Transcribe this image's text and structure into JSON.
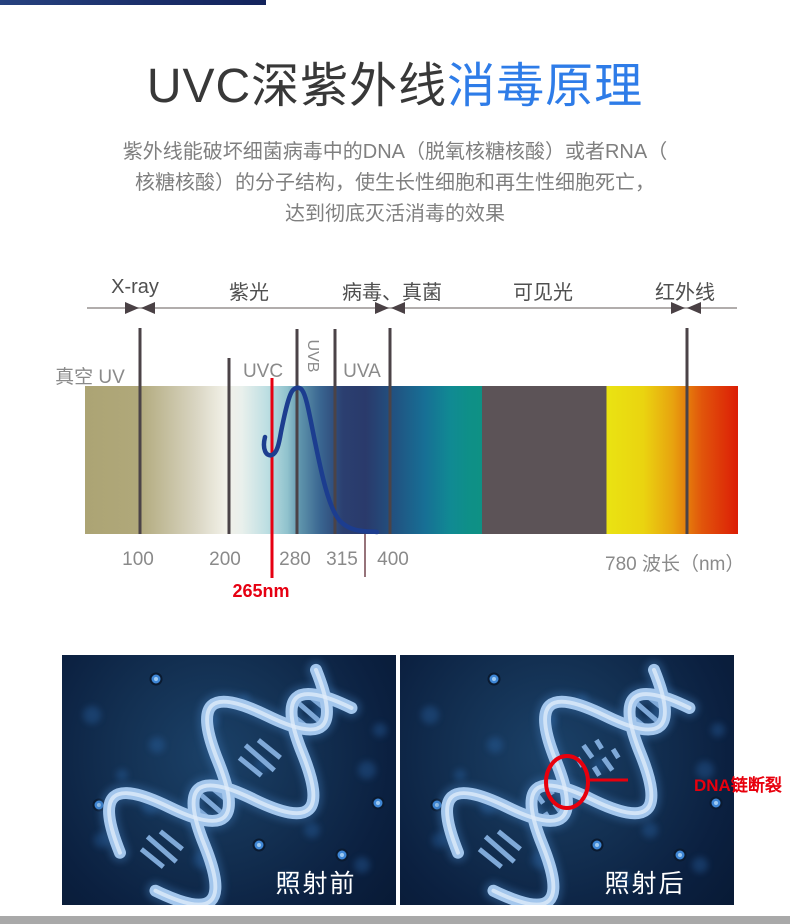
{
  "header": {
    "title_black": "UVC深紫外线",
    "title_blue": "消毒原理",
    "title_accent_color": "#2e7ce8",
    "description_lines": [
      "紫外线能破坏细菌病毒中的DNA（脱氧核糖核酸）或者RNA（",
      "核糖核酸）的分子结构，使生长性细胞和再生性细胞死亡，",
      "达到彻底灭活消毒的效果"
    ]
  },
  "spectrum": {
    "region_labels": [
      "X-ray",
      "紫光",
      "病毒、真菌",
      "可见光",
      "红外线"
    ],
    "band_labels": {
      "vacuum_uv": "真空 UV",
      "uvc": "UVC",
      "uvb": "UVB",
      "uva": "UVA"
    },
    "wavelength_ticks": [
      "100",
      "200",
      "280",
      "315",
      "400"
    ],
    "axis_label": "780 波长（nm）",
    "peak_wavelength_label": "265nm",
    "highlight_color": "#e60012"
  },
  "dna_comparison": {
    "before_label": "照射前",
    "after_label": "照射后",
    "annotation_label": "DNA链断裂",
    "annotation_color": "#e8000d"
  }
}
